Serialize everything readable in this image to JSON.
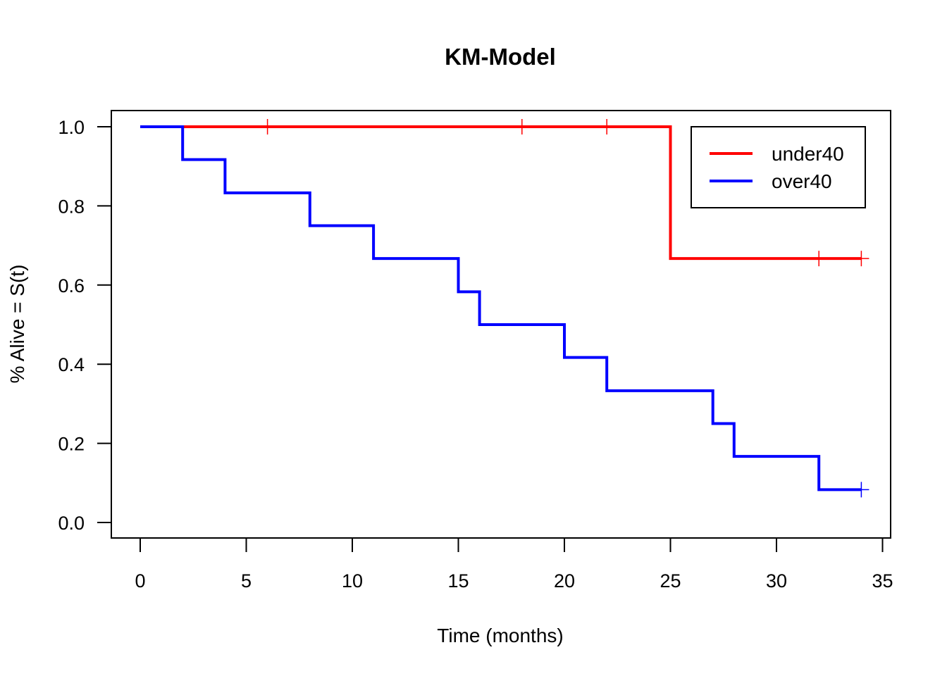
{
  "chart_data": {
    "type": "line",
    "title": "KM-Model",
    "xlabel": "Time (months)",
    "ylabel": "% Alive = S(t)",
    "xlim": [
      0,
      35
    ],
    "ylim": [
      0,
      1
    ],
    "x_ticks": [
      "0",
      "5",
      "10",
      "15",
      "20",
      "25",
      "30",
      "35"
    ],
    "y_ticks": [
      "0.0",
      "0.2",
      "0.4",
      "0.6",
      "0.8",
      "1.0"
    ],
    "step": true,
    "grid": false,
    "legend_position": "top-right",
    "series": [
      {
        "name": "under40",
        "color": "#ff0000",
        "x": [
          0,
          25,
          34
        ],
        "y": [
          1.0,
          0.667,
          0.667
        ],
        "censored": [
          [
            6,
            1.0
          ],
          [
            18,
            1.0
          ],
          [
            22,
            1.0
          ],
          [
            32,
            0.667
          ],
          [
            34,
            0.667
          ]
        ]
      },
      {
        "name": "over40",
        "color": "#0000ff",
        "x": [
          0,
          2,
          4,
          8,
          11,
          15,
          16,
          20,
          22,
          27,
          28,
          32,
          34
        ],
        "y": [
          1.0,
          0.917,
          0.833,
          0.75,
          0.667,
          0.583,
          0.5,
          0.417,
          0.333,
          0.25,
          0.167,
          0.083,
          0.083
        ],
        "censored": [
          [
            34,
            0.083
          ]
        ]
      }
    ]
  }
}
